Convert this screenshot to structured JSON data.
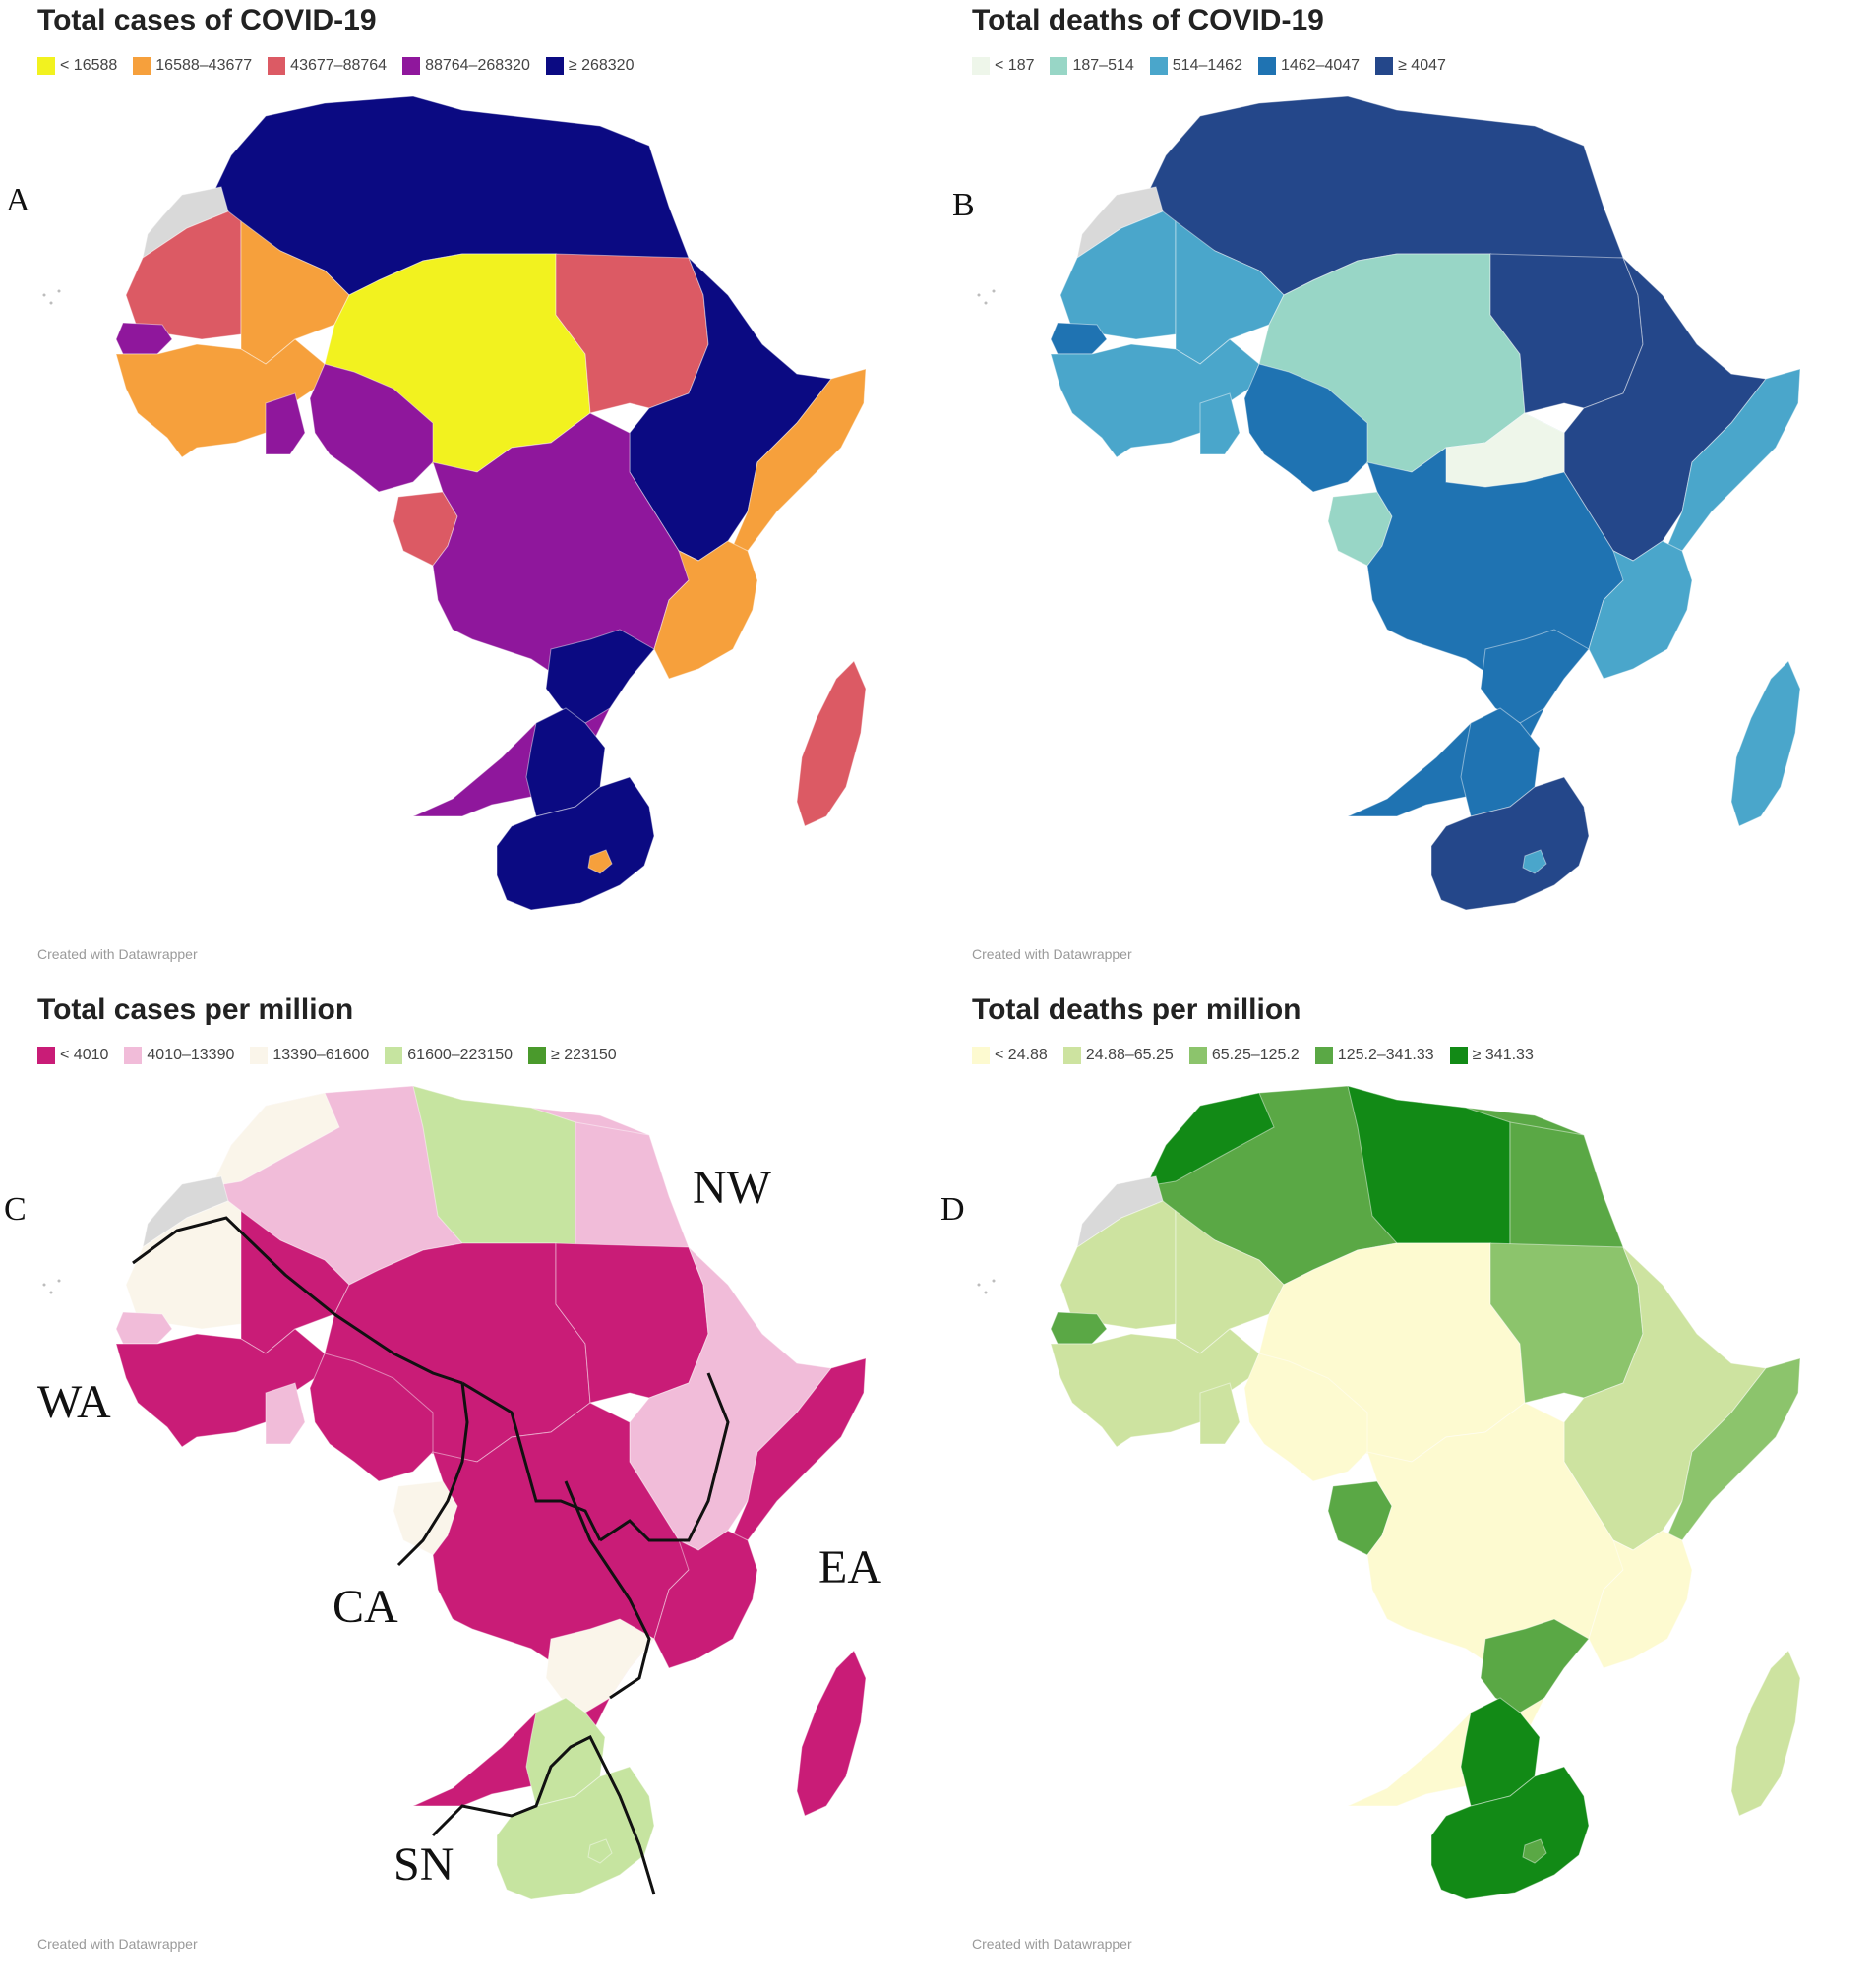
{
  "figure": {
    "panels": [
      {
        "letter": "A",
        "title": "Total cases of COVID-19",
        "legend": [
          {
            "label": "< 16588",
            "color": "#f2f21f"
          },
          {
            "label": "16588–43677",
            "color": "#f6a03c"
          },
          {
            "label": "43677–88764",
            "color": "#dc5a64"
          },
          {
            "label": "88764–268320",
            "color": "#8f179c"
          },
          {
            "label": "≥ 268320",
            "color": "#0b0a82"
          }
        ],
        "fills": {
          "north": "#0b0a82",
          "sudan": "#dc5a64",
          "sahel": "#f2f21f",
          "mauritania": "#dc5a64",
          "mali": "#f6a03c",
          "senegal": "#8f179c",
          "coast": "#f6a03c",
          "ghana": "#8f179c",
          "nigeria": "#8f179c",
          "centralSouth": "#8f179c",
          "horn": "#0b0a82",
          "somalia": "#f6a03c",
          "tanzania": "#f6a03c",
          "gabon": "#dc5a64",
          "zambia": "#0b0a82",
          "botswana": "#0b0a82",
          "southAfrica": "#0b0a82",
          "lesotho": "#f6a03c",
          "madagascar": "#dc5a64",
          "westernSahara": "#d9d9d9"
        },
        "credit": "Created with Datawrapper"
      },
      {
        "letter": "B",
        "title": "Total deaths of COVID-19",
        "legend": [
          {
            "label": "< 187",
            "color": "#eef6ea"
          },
          {
            "label": "187–514",
            "color": "#98d6c6"
          },
          {
            "label": "514–1462",
            "color": "#4aa6cb"
          },
          {
            "label": "1462–4047",
            "color": "#1f73b2"
          },
          {
            "label": "≥ 4047",
            "color": "#24478a"
          }
        ],
        "fills": {
          "north": "#24478a",
          "sudan": "#24478a",
          "sahel": "#98d6c6",
          "mauritania": "#4aa6cb",
          "mali": "#4aa6cb",
          "senegal": "#1f73b2",
          "coast": "#4aa6cb",
          "ghana": "#4aa6cb",
          "nigeria": "#1f73b2",
          "centralSouth": "#1f73b2",
          "horn": "#24478a",
          "somalia": "#4aa6cb",
          "tanzania": "#4aa6cb",
          "gabon": "#98d6c6",
          "zambia": "#1f73b2",
          "botswana": "#1f73b2",
          "southAfrica": "#24478a",
          "lesotho": "#4aa6cb",
          "madagascar": "#4aa6cb",
          "westernSahara": "#d9d9d9",
          "car": "#eef6ea"
        },
        "credit": "Created with Datawrapper"
      },
      {
        "letter": "C",
        "title": "Total cases per million",
        "legend": [
          {
            "label": "< 4010",
            "color": "#c91c77"
          },
          {
            "label": "4010–13390",
            "color": "#f1bcd9"
          },
          {
            "label": "13390–61600",
            "color": "#faf5ea"
          },
          {
            "label": "61600–223150",
            "color": "#c6e4a0"
          },
          {
            "label": "≥ 223150",
            "color": "#4a9a2c"
          }
        ],
        "fills": {
          "north": "#f1bcd9",
          "sudan": "#c91c77",
          "sahel": "#c91c77",
          "mauritania": "#faf5ea",
          "mali": "#c91c77",
          "senegal": "#f1bcd9",
          "coast": "#c91c77",
          "ghana": "#f1bcd9",
          "nigeria": "#c91c77",
          "centralSouth": "#c91c77",
          "horn": "#f1bcd9",
          "somalia": "#c91c77",
          "tanzania": "#c91c77",
          "gabon": "#faf5ea",
          "zambia": "#faf5ea",
          "botswana": "#c6e4a0",
          "southAfrica": "#c6e4a0",
          "lesotho": "#c6e4a0",
          "madagascar": "#c91c77",
          "westernSahara": "#d9d9d9",
          "libya": "#c6e4a0",
          "egypt": "#f1bcd9",
          "morocco": "#faf5ea"
        },
        "region_labels": [
          "NW",
          "WA",
          "CA",
          "EA",
          "SN"
        ],
        "credit": "Created with Datawrapper"
      },
      {
        "letter": "D",
        "title": "Total deaths per million",
        "legend": [
          {
            "label": "< 24.88",
            "color": "#fdfad0"
          },
          {
            "label": "24.88–65.25",
            "color": "#cde3a0"
          },
          {
            "label": "65.25–125.2",
            "color": "#8cc46c"
          },
          {
            "label": "125.2–341.33",
            "color": "#5aa845"
          },
          {
            "label": "≥ 341.33",
            "color": "#128a16"
          }
        ],
        "fills": {
          "north": "#5aa845",
          "sudan": "#8cc46c",
          "sahel": "#fdfad0",
          "mauritania": "#cde3a0",
          "mali": "#cde3a0",
          "senegal": "#5aa845",
          "coast": "#cde3a0",
          "ghana": "#cde3a0",
          "nigeria": "#fdfad0",
          "centralSouth": "#fdfad0",
          "horn": "#cde3a0",
          "somalia": "#8cc46c",
          "tanzania": "#fdfad0",
          "gabon": "#5aa845",
          "zambia": "#5aa845",
          "botswana": "#128a16",
          "southAfrica": "#128a16",
          "lesotho": "#5aa845",
          "madagascar": "#cde3a0",
          "westernSahara": "#d9d9d9",
          "libya": "#128a16",
          "morocco": "#128a16",
          "egypt": "#5aa845"
        },
        "credit": "Created with Datawrapper"
      }
    ]
  }
}
